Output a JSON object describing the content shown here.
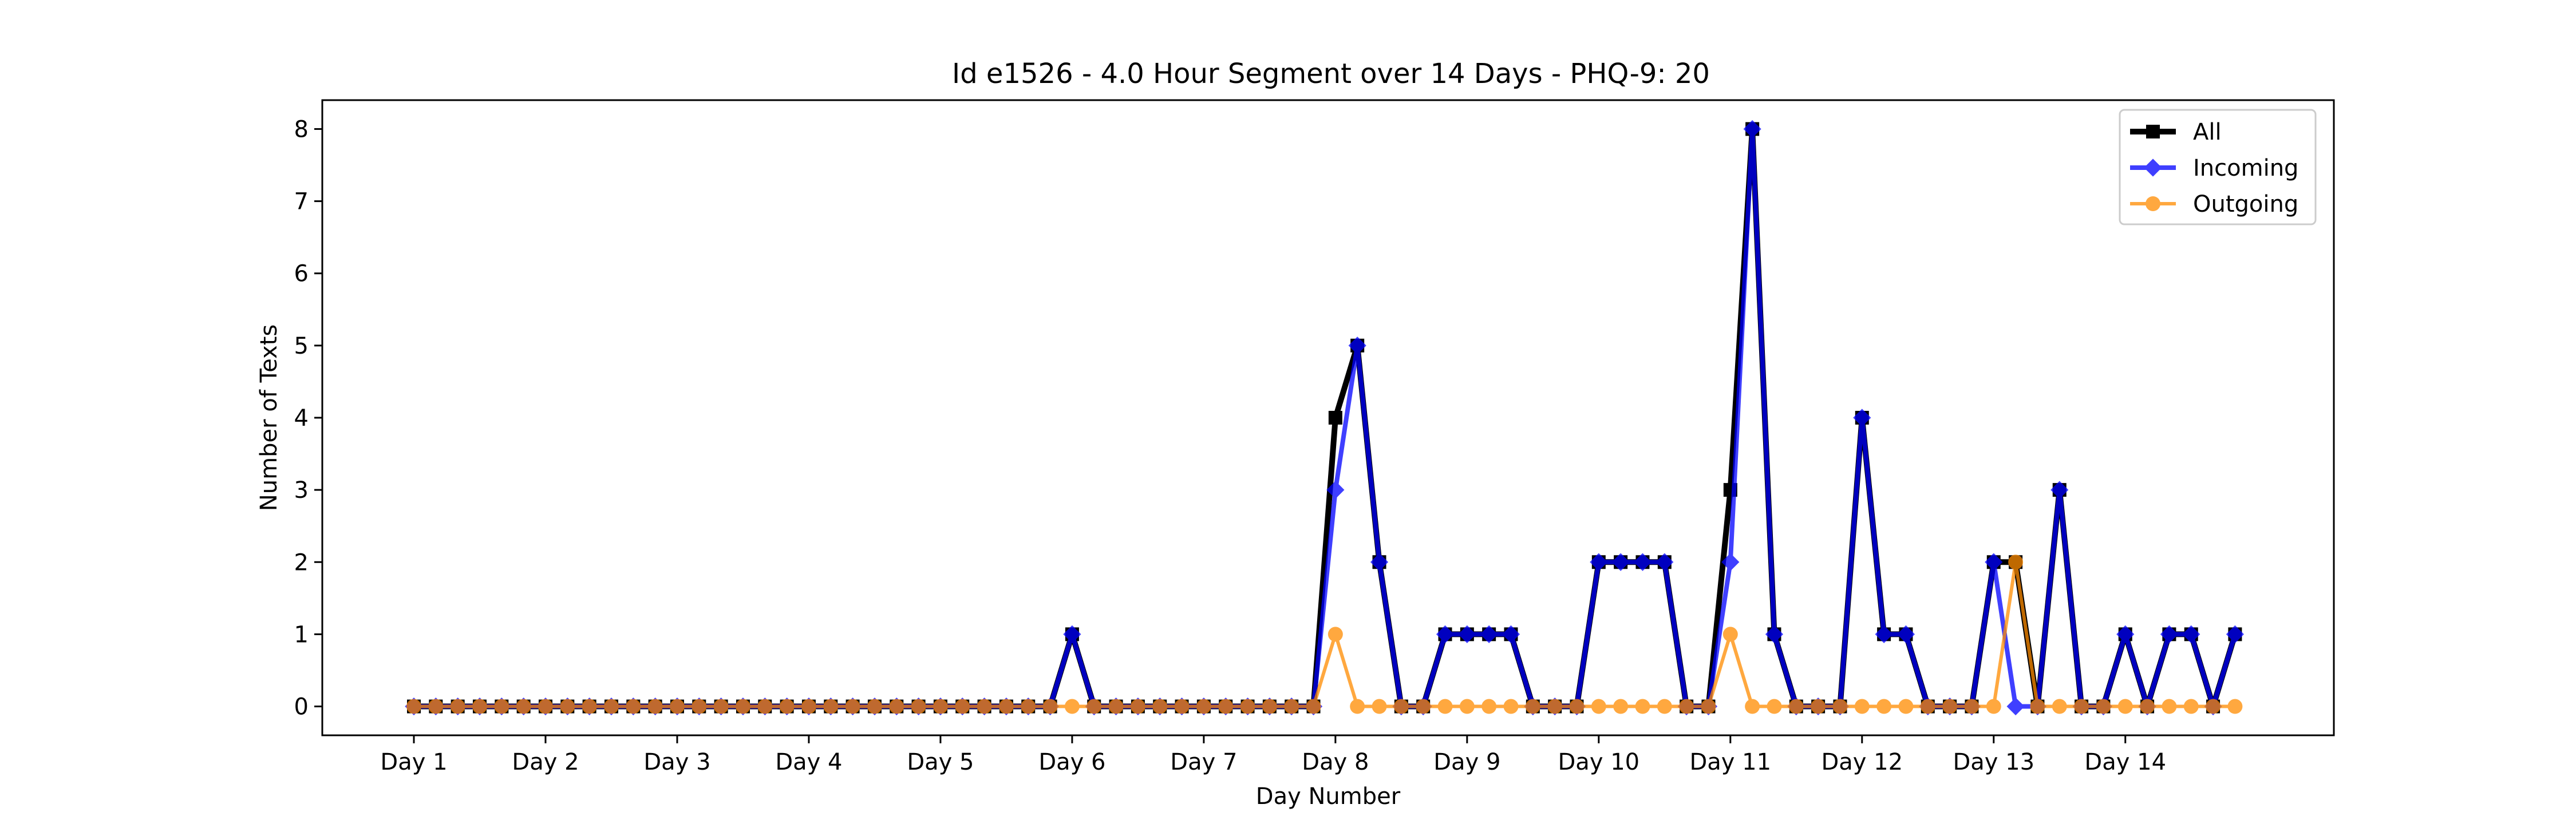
{
  "chart_data": {
    "type": "line",
    "title": "Id e1526 - 4.0 Hour Segment over 14 Days - PHQ-9: 20",
    "xlabel": "Day Number",
    "ylabel": "Number of Texts",
    "x_tick_labels": [
      "Day 1",
      "Day 2",
      "Day 3",
      "Day 4",
      "Day 5",
      "Day 6",
      "Day 7",
      "Day 8",
      "Day 9",
      "Day 10",
      "Day 11",
      "Day 12",
      "Day 13",
      "Day 14"
    ],
    "segments_per_day": 6,
    "y_ticks": [
      0,
      1,
      2,
      3,
      4,
      5,
      6,
      7,
      8
    ],
    "ylim": [
      -0.4,
      8.4
    ],
    "grid": false,
    "legend_position": "top-right",
    "series": [
      {
        "name": "All",
        "color": "#000000",
        "marker": "square",
        "values": [
          0,
          0,
          0,
          0,
          0,
          0,
          0,
          0,
          0,
          0,
          0,
          0,
          0,
          0,
          0,
          0,
          0,
          0,
          0,
          0,
          0,
          0,
          0,
          0,
          0,
          0,
          0,
          0,
          0,
          0,
          1,
          0,
          0,
          0,
          0,
          0,
          0,
          0,
          0,
          0,
          0,
          0,
          4,
          5,
          2,
          0,
          0,
          1,
          1,
          1,
          1,
          0,
          0,
          0,
          2,
          2,
          2,
          2,
          0,
          0,
          3,
          8,
          1,
          0,
          0,
          0,
          4,
          1,
          1,
          0,
          0,
          0,
          2,
          2,
          0,
          3,
          0,
          0,
          1,
          0,
          1,
          1,
          0,
          1
        ]
      },
      {
        "name": "Incoming",
        "color": "#0000ff",
        "marker": "diamond",
        "values": [
          0,
          0,
          0,
          0,
          0,
          0,
          0,
          0,
          0,
          0,
          0,
          0,
          0,
          0,
          0,
          0,
          0,
          0,
          0,
          0,
          0,
          0,
          0,
          0,
          0,
          0,
          0,
          0,
          0,
          0,
          1,
          0,
          0,
          0,
          0,
          0,
          0,
          0,
          0,
          0,
          0,
          0,
          3,
          5,
          2,
          0,
          0,
          1,
          1,
          1,
          1,
          0,
          0,
          0,
          2,
          2,
          2,
          2,
          0,
          0,
          2,
          8,
          1,
          0,
          0,
          0,
          4,
          1,
          1,
          0,
          0,
          0,
          2,
          0,
          0,
          3,
          0,
          0,
          1,
          0,
          1,
          1,
          0,
          1
        ]
      },
      {
        "name": "Outgoing",
        "color": "#ff8c00",
        "marker": "circle",
        "values": [
          0,
          0,
          0,
          0,
          0,
          0,
          0,
          0,
          0,
          0,
          0,
          0,
          0,
          0,
          0,
          0,
          0,
          0,
          0,
          0,
          0,
          0,
          0,
          0,
          0,
          0,
          0,
          0,
          0,
          0,
          0,
          0,
          0,
          0,
          0,
          0,
          0,
          0,
          0,
          0,
          0,
          0,
          1,
          0,
          0,
          0,
          0,
          0,
          0,
          0,
          0,
          0,
          0,
          0,
          0,
          0,
          0,
          0,
          0,
          0,
          1,
          0,
          0,
          0,
          0,
          0,
          0,
          0,
          0,
          0,
          0,
          0,
          0,
          2,
          0,
          0,
          0,
          0,
          0,
          0,
          0,
          0,
          0,
          0
        ]
      }
    ]
  }
}
